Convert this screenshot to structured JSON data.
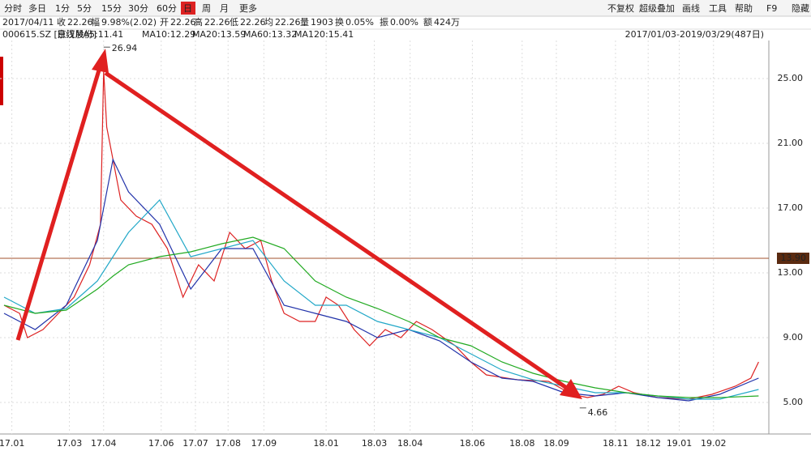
{
  "toolbar": {
    "left": [
      "分时",
      "多日",
      "1分",
      "5分",
      "15分",
      "30分",
      "60分",
      "日",
      "周",
      "月",
      "更多"
    ],
    "right": [
      "不复权",
      "超级叠加",
      "画线",
      "工具",
      "帮助",
      "F9",
      "隐藏"
    ]
  },
  "info": {
    "date": "2017/04/11",
    "fields": [
      {
        "label": "收",
        "value": "22.26"
      },
      {
        "label": "幅",
        "value": "9.98%(2.02)"
      },
      {
        "label": "开",
        "value": "22.26"
      },
      {
        "label": "高",
        "value": "22.26"
      },
      {
        "label": "低",
        "value": "22.26"
      },
      {
        "label": "均",
        "value": "22.26"
      },
      {
        "label": "量",
        "value": "1903"
      },
      {
        "label": "换",
        "value": "0.05%"
      },
      {
        "label": "振",
        "value": "0.00%"
      },
      {
        "label": "额",
        "value": "424万"
      }
    ]
  },
  "legend": {
    "symbol": "000615.SZ [京汉股份]",
    "period": "日线",
    "items": [
      {
        "text": "MA5:11.41",
        "color": "#d22"
      },
      {
        "text": "MA10:12.29",
        "color": "#8a8aa8"
      },
      {
        "text": "MA20:13.59",
        "color": "#2233aa"
      },
      {
        "text": "MA60:13.32",
        "color": "#22a8c8"
      },
      {
        "text": "MA120:15.41",
        "color": "#22aa22"
      }
    ],
    "range": "2017/01/03-2019/03/29(487日)"
  },
  "chart_data": {
    "type": "line",
    "xlim": [
      0,
      490
    ],
    "ylim": [
      4.1,
      27.35
    ],
    "yticks": [
      {
        "value": 5,
        "label": "5.00"
      },
      {
        "value": 9,
        "label": "9.00"
      },
      {
        "value": 13,
        "label": "13.00"
      },
      {
        "value": 17,
        "label": "17.00"
      },
      {
        "value": 21,
        "label": "21.00"
      },
      {
        "value": 25,
        "label": "25.00"
      }
    ],
    "xticks": [
      {
        "value": 5,
        "label": "17.01"
      },
      {
        "value": 42,
        "label": "17.03"
      },
      {
        "value": 64,
        "label": "17.04"
      },
      {
        "value": 101,
        "label": "17.06"
      },
      {
        "value": 123,
        "label": "17.07"
      },
      {
        "value": 144,
        "label": "17.08"
      },
      {
        "value": 167,
        "label": "17.09"
      },
      {
        "value": 207,
        "label": "18.01"
      },
      {
        "value": 238,
        "label": "18.03"
      },
      {
        "value": 261,
        "label": "18.04"
      },
      {
        "value": 301,
        "label": "18.06"
      },
      {
        "value": 333,
        "label": "18.08"
      },
      {
        "value": 355,
        "label": "18.09"
      },
      {
        "value": 393,
        "label": "18.11"
      },
      {
        "value": 414,
        "label": "18.12"
      },
      {
        "value": 434,
        "label": "19.01"
      },
      {
        "value": 456,
        "label": "19.02"
      }
    ],
    "grid": true,
    "reference": {
      "value": 13.9,
      "label": "13.90",
      "color": "#a0522d"
    },
    "annotations": [
      {
        "x": 64,
        "y": 26.94
      },
      {
        "x": 370,
        "y": 4.66
      }
    ],
    "series": [
      {
        "name": "日线",
        "color": "#d22",
        "x": [
          0,
          10,
          15,
          25,
          35,
          45,
          55,
          62,
          64,
          66,
          70,
          75,
          85,
          95,
          105,
          115,
          125,
          135,
          145,
          155,
          165,
          172,
          180,
          190,
          200,
          207,
          215,
          225,
          235,
          245,
          255,
          265,
          275,
          290,
          300,
          310,
          330,
          350,
          365,
          375,
          385,
          395,
          405,
          420,
          440,
          455,
          470,
          480,
          485
        ],
        "values": [
          11,
          10.5,
          9,
          9.5,
          10.5,
          11.5,
          13.5,
          16,
          25.5,
          22,
          20,
          17.5,
          16.5,
          16,
          14.5,
          11.5,
          13.5,
          12.5,
          15.5,
          14.5,
          15,
          12.5,
          10.5,
          10,
          10,
          11.5,
          11,
          9.5,
          8.5,
          9.5,
          9,
          10,
          9.5,
          8.5,
          7.5,
          6.7,
          6.4,
          6.3,
          5.5,
          5.3,
          5.5,
          6,
          5.6,
          5.3,
          5.2,
          5.5,
          6,
          6.5,
          7.5
        ]
      },
      {
        "name": "MA10",
        "color": "#2233aa",
        "x": [
          0,
          20,
          40,
          60,
          70,
          80,
          100,
          120,
          140,
          160,
          180,
          200,
          220,
          240,
          260,
          280,
          300,
          320,
          340,
          360,
          380,
          400,
          420,
          440,
          460,
          485
        ],
        "values": [
          10.5,
          9.5,
          11,
          15,
          20,
          18,
          16,
          12,
          14.5,
          14.5,
          11,
          10.5,
          10,
          9,
          9.5,
          8.8,
          7.5,
          6.5,
          6.3,
          5.6,
          5.4,
          5.6,
          5.3,
          5.1,
          5.5,
          6.5
        ]
      },
      {
        "name": "MA60",
        "color": "#22a8c8",
        "x": [
          0,
          20,
          40,
          60,
          70,
          80,
          100,
          120,
          140,
          160,
          180,
          200,
          220,
          240,
          260,
          280,
          300,
          320,
          340,
          360,
          380,
          400,
          420,
          440,
          460,
          485
        ],
        "values": [
          11.5,
          10.5,
          10.8,
          12.5,
          14,
          15.5,
          17.5,
          14,
          14.5,
          15,
          12.5,
          11,
          11,
          10,
          9.5,
          9,
          8,
          7,
          6.4,
          6,
          5.6,
          5.6,
          5.4,
          5.2,
          5.2,
          5.8
        ]
      },
      {
        "name": "MA120",
        "color": "#22aa22",
        "x": [
          0,
          20,
          40,
          60,
          70,
          80,
          100,
          120,
          140,
          160,
          180,
          200,
          220,
          240,
          260,
          280,
          300,
          320,
          340,
          360,
          380,
          400,
          420,
          440,
          460,
          485
        ],
        "values": [
          11,
          10.5,
          10.7,
          12,
          12.8,
          13.5,
          14,
          14.3,
          14.8,
          15.2,
          14.5,
          12.5,
          11.5,
          10.8,
          10,
          9,
          8.5,
          7.5,
          6.8,
          6.3,
          5.9,
          5.6,
          5.4,
          5.3,
          5.3,
          5.4
        ]
      }
    ]
  }
}
